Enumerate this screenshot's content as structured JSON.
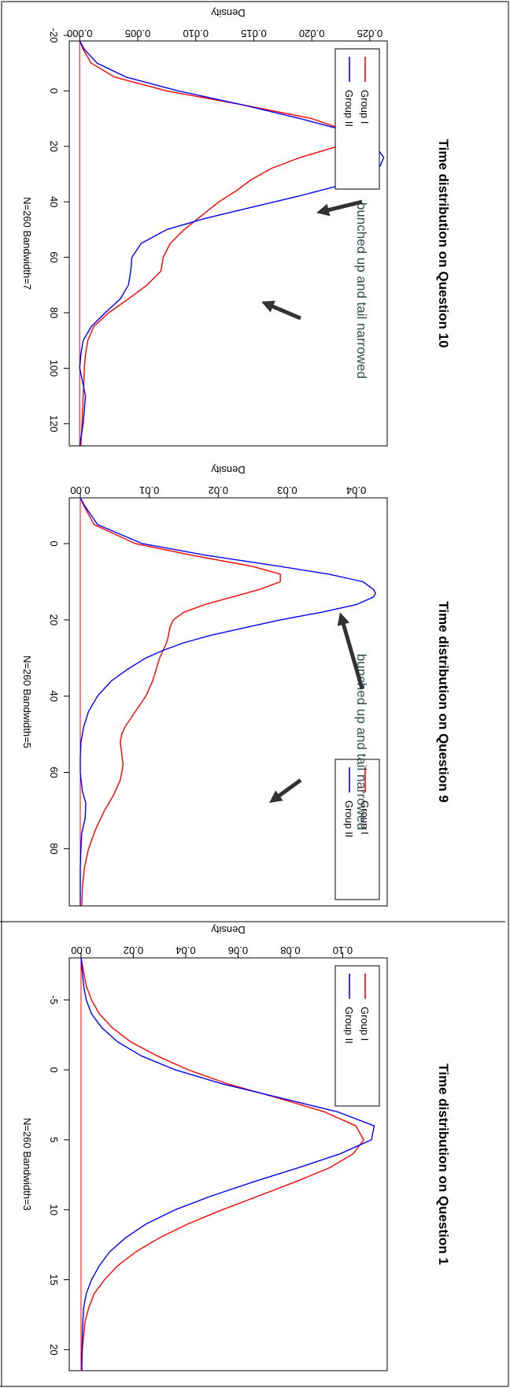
{
  "chart_data": [
    {
      "type": "line",
      "title": "Time distribution on Question 1",
      "xlabel": "N=260   Bandwidth=3",
      "ylabel": "Density",
      "xlim": [
        -8,
        21.5
      ],
      "ylim": [
        -0.0045,
        0.117
      ],
      "xticks": [
        -5,
        0,
        5,
        10,
        15,
        20
      ],
      "yticks": [
        0.0,
        0.02,
        0.04,
        0.06,
        0.08,
        0.1
      ],
      "ytick_labels": [
        "0.00",
        "0.02",
        "0.04",
        "0.06",
        "0.08",
        "0.10"
      ],
      "legend": [
        "Group I",
        "Group II"
      ],
      "legend_position": "top-left",
      "annotations": [],
      "series": [
        {
          "name": "Group I",
          "color": "#ff0000",
          "x": [
            -8,
            -7,
            -6,
            -5,
            -4,
            -3,
            -2,
            -1,
            0,
            1,
            2,
            3,
            4,
            5,
            6,
            7,
            8,
            9,
            10,
            11,
            12,
            13,
            14,
            15,
            16,
            17,
            18,
            19,
            20,
            21,
            21.5
          ],
          "y": [
            0.0,
            0.001,
            0.002,
            0.004,
            0.007,
            0.012,
            0.019,
            0.029,
            0.041,
            0.056,
            0.075,
            0.093,
            0.105,
            0.108,
            0.104,
            0.095,
            0.082,
            0.068,
            0.054,
            0.041,
            0.03,
            0.021,
            0.014,
            0.009,
            0.005,
            0.003,
            0.0015,
            0.001,
            0.0005,
            0.0003,
            0.0002
          ]
        },
        {
          "name": "Group II",
          "color": "#0000ff",
          "x": [
            -8,
            -7,
            -6,
            -5,
            -4,
            -3,
            -2,
            -1,
            0,
            1,
            2,
            3,
            4,
            5,
            6,
            7,
            8,
            9,
            10,
            11,
            12,
            13,
            14,
            15,
            16,
            17,
            18,
            19,
            20,
            21,
            21.5
          ],
          "y": [
            0.0,
            0.0005,
            0.001,
            0.002,
            0.004,
            0.008,
            0.014,
            0.023,
            0.036,
            0.054,
            0.076,
            0.098,
            0.112,
            0.111,
            0.099,
            0.083,
            0.066,
            0.05,
            0.036,
            0.025,
            0.017,
            0.011,
            0.007,
            0.004,
            0.002,
            0.001,
            0.0007,
            0.0005,
            0.0004,
            0.0003,
            0.0003
          ]
        }
      ]
    },
    {
      "type": "line",
      "title": "Time distribution on Question 9",
      "xlabel": "N=260   Bandwidth=5",
      "ylabel": "Density",
      "xlim": [
        -12,
        95
      ],
      "ylim": [
        -0.0016,
        0.0445
      ],
      "xticks": [
        0,
        20,
        40,
        60,
        80
      ],
      "yticks": [
        0.0,
        0.01,
        0.02,
        0.03,
        0.04
      ],
      "ytick_labels": [
        "0.00",
        "0.01",
        "0.02",
        "0.03",
        "0.04"
      ],
      "legend": [
        "Group I",
        "Group II"
      ],
      "legend_position": "top-right",
      "annotations": [
        "bunched up and tail narrowed"
      ],
      "series": [
        {
          "name": "Group I",
          "color": "#ff0000",
          "x": [
            -12,
            -10,
            -5,
            0,
            3,
            6,
            8,
            10,
            12,
            14,
            16,
            18,
            20,
            22,
            24,
            26,
            28,
            30,
            33,
            36,
            40,
            44,
            48,
            50,
            52,
            55,
            58,
            62,
            66,
            70,
            75,
            80,
            85,
            90,
            95
          ],
          "y": [
            0.0,
            0.0005,
            0.002,
            0.008,
            0.016,
            0.025,
            0.029,
            0.029,
            0.026,
            0.022,
            0.018,
            0.015,
            0.0135,
            0.013,
            0.0128,
            0.0125,
            0.012,
            0.0115,
            0.011,
            0.0105,
            0.0095,
            0.008,
            0.0065,
            0.006,
            0.0058,
            0.006,
            0.0062,
            0.0058,
            0.0048,
            0.0035,
            0.0022,
            0.0012,
            0.0006,
            0.0003,
            0.0002
          ]
        },
        {
          "name": "Group II",
          "color": "#0000ff",
          "x": [
            -12,
            -10,
            -5,
            0,
            3,
            6,
            8,
            10,
            12,
            13,
            14,
            16,
            18,
            20,
            22,
            24,
            26,
            28,
            30,
            33,
            36,
            40,
            44,
            48,
            52,
            56,
            60,
            65,
            68,
            72,
            76,
            80,
            85,
            90,
            95
          ],
          "y": [
            0.0,
            0.0006,
            0.0025,
            0.009,
            0.018,
            0.029,
            0.036,
            0.041,
            0.0425,
            0.0428,
            0.0425,
            0.04,
            0.035,
            0.029,
            0.024,
            0.019,
            0.015,
            0.012,
            0.0095,
            0.0068,
            0.0045,
            0.0025,
            0.0012,
            0.0005,
            0.0001,
            0.0,
            0.0,
            0.0003,
            0.0008,
            0.0007,
            0.0002,
            0.0001,
            0.0,
            0.0,
            0.0
          ]
        }
      ]
    },
    {
      "type": "line",
      "title": "Time distribution on Question 10",
      "xlabel": "N=260   Bandwidth=7",
      "ylabel": "Density",
      "xlim": [
        -18,
        128
      ],
      "ylim": [
        -0.0009,
        0.0265
      ],
      "xticks": [
        -20,
        0,
        20,
        40,
        60,
        80,
        100,
        120
      ],
      "yticks": [
        0.0,
        0.005,
        0.01,
        0.015,
        0.02,
        0.025
      ],
      "ytick_labels": [
        "0.000",
        "0.005",
        "0.010",
        "0.015",
        "0.020",
        "0.025"
      ],
      "legend": [
        "Group I",
        "Group II"
      ],
      "legend_position": "top-left",
      "annotations": [
        "bunched up and tail narrowed"
      ],
      "series": [
        {
          "name": "Group I",
          "color": "#ff0000",
          "x": [
            -18,
            -15,
            -10,
            -5,
            0,
            5,
            10,
            14,
            17,
            20,
            24,
            28,
            32,
            36,
            40,
            45,
            50,
            55,
            60,
            65,
            70,
            75,
            80,
            85,
            90,
            95,
            100,
            110,
            120,
            128
          ],
          "y": [
            0.0,
            0.0003,
            0.001,
            0.003,
            0.0075,
            0.014,
            0.02,
            0.0228,
            0.0232,
            0.0222,
            0.019,
            0.0165,
            0.0148,
            0.0135,
            0.012,
            0.0105,
            0.009,
            0.0078,
            0.0072,
            0.007,
            0.0058,
            0.0042,
            0.0025,
            0.0012,
            0.0007,
            0.0005,
            0.0004,
            0.0003,
            0.0002,
            0.0001
          ]
        },
        {
          "name": "Group II",
          "color": "#0000ff",
          "x": [
            -18,
            -15,
            -10,
            -5,
            0,
            5,
            10,
            15,
            20,
            24,
            27,
            30,
            34,
            38,
            42,
            46,
            50,
            55,
            60,
            65,
            70,
            75,
            80,
            85,
            90,
            95,
            100,
            110,
            120,
            128
          ],
          "y": [
            0.0,
            0.0004,
            0.0015,
            0.004,
            0.0085,
            0.014,
            0.019,
            0.0235,
            0.0255,
            0.0262,
            0.0259,
            0.025,
            0.0225,
            0.0188,
            0.0148,
            0.0108,
            0.0075,
            0.0053,
            0.0045,
            0.0044,
            0.0042,
            0.0035,
            0.0022,
            0.001,
            0.0003,
            0.0001,
            0.0,
            0.0005,
            0.0003,
            0.0
          ]
        }
      ]
    }
  ]
}
